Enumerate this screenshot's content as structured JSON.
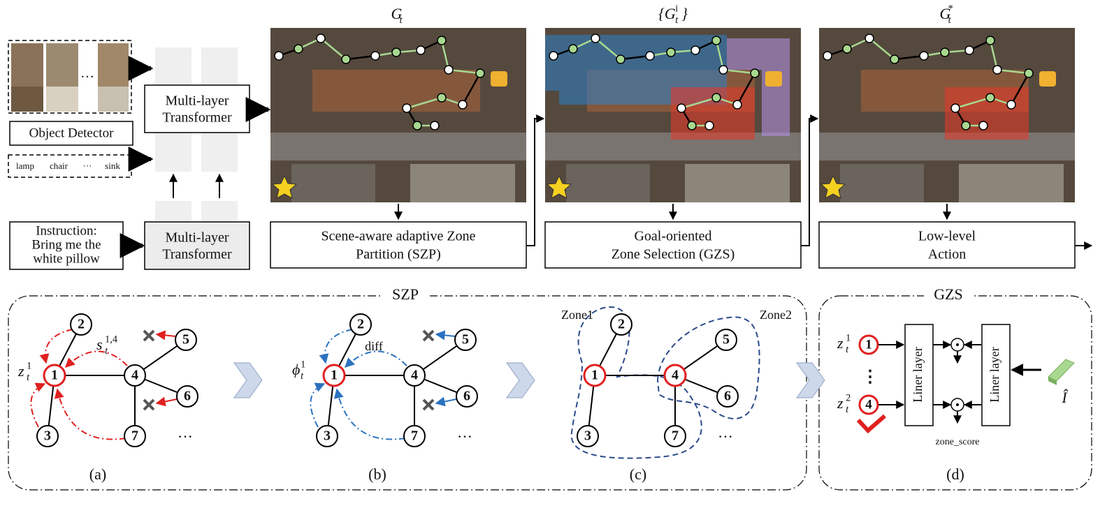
{
  "inputs": {
    "object_detector": "Object Detector",
    "objects": [
      "lamp",
      "chair",
      "···",
      "sink"
    ],
    "photo_ellipsis": "···",
    "instruction": [
      "Instruction:",
      "Bring me the",
      "white pillow"
    ]
  },
  "transformers": [
    [
      "Multi-layer",
      "Transformer"
    ],
    [
      "Multi-layer",
      "Transformer"
    ]
  ],
  "stages": [
    {
      "title": {
        "base": "G",
        "sub": "t"
      },
      "module": [
        "Scene-aware adaptive Zone",
        "Partition (SZP)"
      ]
    },
    {
      "title": {
        "base": "{G",
        "sub": "t",
        "sup": "i",
        "close": "}"
      },
      "module": [
        "Goal-oriented",
        "Zone Selection (GZS)"
      ]
    },
    {
      "title": {
        "base": "G",
        "sub": "t",
        "sup": "*"
      },
      "module": [
        "Low-level",
        "Action"
      ]
    }
  ],
  "szp": {
    "label": "SZP",
    "panels": [
      {
        "caption": "(a)",
        "nodes": [
          "1",
          "2",
          "3",
          "4",
          "5",
          "6",
          "7"
        ],
        "more": "···",
        "labels": [
          {
            "base": "z",
            "sub": "t",
            "sup": "1"
          },
          {
            "base": "s",
            "sub": "t",
            "sup": "1,4"
          }
        ]
      },
      {
        "caption": "(b)",
        "nodes": [
          "1",
          "2",
          "3",
          "4",
          "5",
          "6",
          "7"
        ],
        "more": "···",
        "labels": [
          {
            "base": "ϕ",
            "sub": "t",
            "sup": "1"
          },
          {
            "text": "diff"
          }
        ]
      },
      {
        "caption": "(c)",
        "nodes": [
          "1",
          "2",
          "3",
          "4",
          "5",
          "6",
          "7"
        ],
        "more": "···",
        "labels": [
          {
            "text": "Zone1"
          },
          {
            "text": "Zone2"
          }
        ]
      }
    ]
  },
  "gzs": {
    "label": "GZS",
    "caption": "(d)",
    "zones": [
      {
        "label": {
          "base": "z",
          "sub": "t",
          "sup": "1"
        },
        "node": "1"
      },
      {
        "label": {
          "base": "z",
          "sub": "t",
          "sup": "2"
        },
        "node": "4"
      }
    ],
    "vdots": "⋮",
    "layers": [
      "Liner layer",
      "Liner layer"
    ],
    "output": "zone_score",
    "instruction_feature": "Î"
  }
}
